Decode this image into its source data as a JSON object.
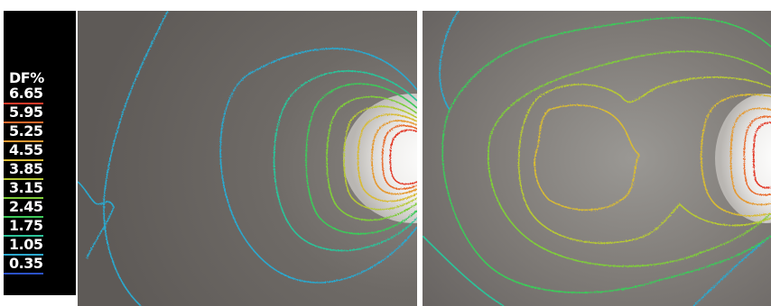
{
  "legend": {
    "title": "DF%",
    "levels": [
      {
        "value": "6.65",
        "color": "#e23b2a"
      },
      {
        "value": "5.95",
        "color": "#e86a2c"
      },
      {
        "value": "5.25",
        "color": "#e59a33"
      },
      {
        "value": "4.55",
        "color": "#d8bb35"
      },
      {
        "value": "3.85",
        "color": "#b7c936"
      },
      {
        "value": "3.15",
        "color": "#7fcd3a"
      },
      {
        "value": "2.45",
        "color": "#3ec95a"
      },
      {
        "value": "1.75",
        "color": "#2cc49a"
      },
      {
        "value": "1.05",
        "color": "#2ba9cf"
      },
      {
        "value": "0.35",
        "color": "#2b52c8"
      }
    ]
  },
  "panels": [
    {
      "name": "left-daylight-contour-panel"
    },
    {
      "name": "right-daylight-contour-panel"
    }
  ]
}
